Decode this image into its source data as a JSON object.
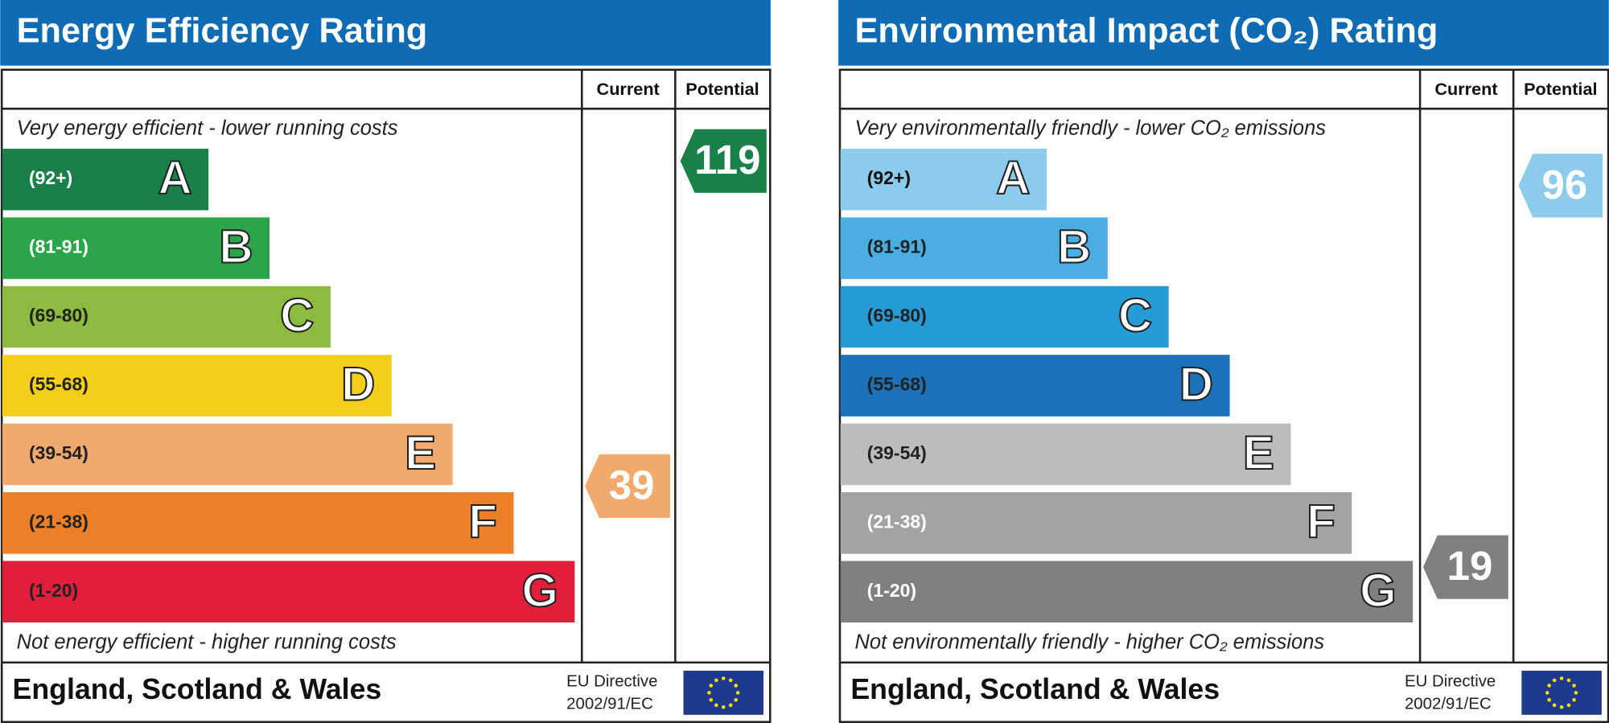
{
  "panels": [
    {
      "title": "Energy Efficiency Rating",
      "header": {
        "current": "Current",
        "potential": "Potential"
      },
      "top_note": "Very energy efficient - lower running costs",
      "bottom_note": "Not energy efficient - higher running costs",
      "bands": [
        {
          "range": "(92+)",
          "letter": "A",
          "color": "#198049",
          "text_color": "#ffffff"
        },
        {
          "range": "(81-91)",
          "letter": "B",
          "color": "#2ca44a",
          "text_color": "#ffffff"
        },
        {
          "range": "(69-80)",
          "letter": "C",
          "color": "#8dbb3f",
          "text_color": "#222222"
        },
        {
          "range": "(55-68)",
          "letter": "D",
          "color": "#f5cd1b",
          "text_color": "#222222"
        },
        {
          "range": "(39-54)",
          "letter": "E",
          "color": "#f1a96d",
          "text_color": "#222222"
        },
        {
          "range": "(21-38)",
          "letter": "F",
          "color": "#ec8029",
          "text_color": "#222222"
        },
        {
          "range": "(1-20)",
          "letter": "G",
          "color": "#e21f3b",
          "text_color": "#222222"
        }
      ],
      "current": {
        "value": "39",
        "color": "#f1a96d"
      },
      "potential": {
        "value": "119",
        "color": "#198049"
      },
      "footer": {
        "country": "England, Scotland & Wales",
        "directive_line1": "EU Directive",
        "directive_line2": "2002/91/EC"
      }
    },
    {
      "title": "Environmental Impact (CO₂) Rating",
      "header": {
        "current": "Current",
        "potential": "Potential"
      },
      "top_note": "Very environmentally friendly - lower CO₂ emissions",
      "bottom_note": "Not environmentally friendly - higher CO₂ emissions",
      "bands": [
        {
          "range": "(92+)",
          "letter": "A",
          "color": "#8ccbec",
          "text_color": "#111111"
        },
        {
          "range": "(81-91)",
          "letter": "B",
          "color": "#4aaee0",
          "text_color": "#222222"
        },
        {
          "range": "(69-80)",
          "letter": "C",
          "color": "#269bd4",
          "text_color": "#222222"
        },
        {
          "range": "(55-68)",
          "letter": "D",
          "color": "#1d71b8",
          "text_color": "#222222"
        },
        {
          "range": "(39-54)",
          "letter": "E",
          "color": "#bcbcba",
          "text_color": "#222222"
        },
        {
          "range": "(21-38)",
          "letter": "F",
          "color": "#a3a3a3",
          "text_color": "#ffffff"
        },
        {
          "range": "(1-20)",
          "letter": "G",
          "color": "#808080",
          "text_color": "#ffffff"
        }
      ],
      "current": {
        "value": "19",
        "color": "#808080"
      },
      "potential": {
        "value": "96",
        "color": "#8ccbec"
      },
      "footer": {
        "country": "England, Scotland & Wales",
        "directive_line1": "EU Directive",
        "directive_line2": "2002/91/EC"
      }
    }
  ]
}
